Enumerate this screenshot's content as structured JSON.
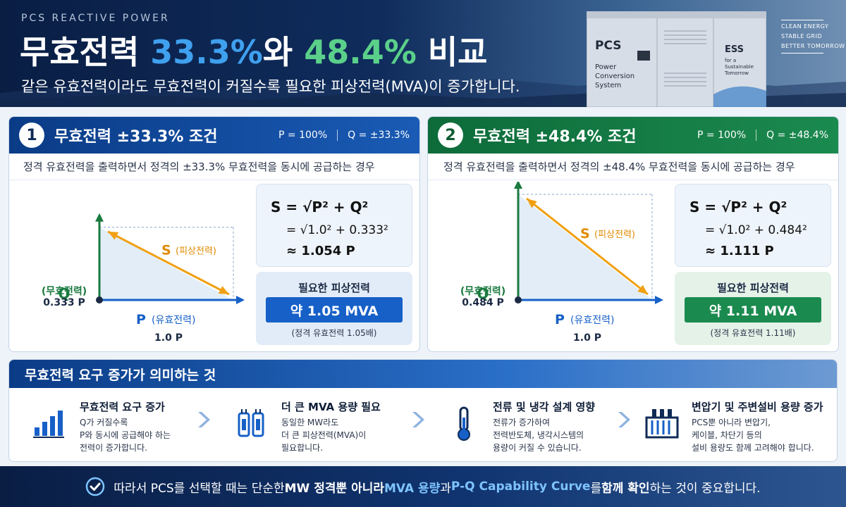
{
  "header": {
    "eyebrow": "PCS REACTIVE POWER",
    "title_part1": "무효전력 ",
    "title_pct1": "33.3%",
    "title_part2": "와 ",
    "title_pct2": "48.4%",
    "title_part3": " 비교",
    "subtitle": "같은 유효전력이라도 무효전력이 커질수록 필요한 피상전력(MVA)이 증가합니다.",
    "cabinet_label": "PCS",
    "cabinet_sub1": "Power",
    "cabinet_sub2": "Conversion",
    "cabinet_sub3": "System",
    "cabinet_ess": "ESS",
    "cabinet_ess1": "for a",
    "cabinet_ess2": "Sustainable",
    "cabinet_ess3": "Tomorrow",
    "tagline": [
      "CLEAN ENERGY",
      "STABLE GRID",
      "BETTER TOMORROW"
    ]
  },
  "panels": [
    {
      "number": "1",
      "title": "무효전력 ±33.3% 조건",
      "p_meta": "P = 100%",
      "q_meta": "Q = ±33.3%",
      "description": "정격 유효전력을 출력하면서 정격의 ±33.3% 무효전력을 동시에 공급하는 경우",
      "q_axis": "Q",
      "q_axis_sub": "(무효전력)",
      "q_value": "0.333 P",
      "s_label": "S",
      "s_label_sub": "(피상전력)",
      "p_axis": "P",
      "p_axis_sub": "(유효전력)",
      "p_value": "1.0 P",
      "formula1": "S = √P² + Q²",
      "formula2": "= √1.0² + 0.333²",
      "formula3": "≈ 1.054 P",
      "req_title": "필요한 피상전력",
      "req_value": "약 1.05 MVA",
      "req_note": "(정격 유효전력 1.05배)",
      "q_ratio": 0.333,
      "color": "#1660c7"
    },
    {
      "number": "2",
      "title": "무효전력 ±48.4% 조건",
      "p_meta": "P = 100%",
      "q_meta": "Q = ±48.4%",
      "description": "정격 유효전력을 출력하면서 정격의 ±48.4% 무효전력을 동시에 공급하는 경우",
      "q_axis": "Q",
      "q_axis_sub": "(무효전력)",
      "q_value": "0.484 P",
      "s_label": "S",
      "s_label_sub": "(피상전력)",
      "p_axis": "P",
      "p_axis_sub": "(유효전력)",
      "p_value": "1.0 P",
      "formula1": "S = √P² + Q²",
      "formula2": "= √1.0² + 0.484²",
      "formula3": "≈ 1.111 P",
      "req_title": "필요한 피상전력",
      "req_value": "약 1.11 MVA",
      "req_note": "(정격 유효전력 1.11배)",
      "q_ratio": 0.484,
      "color": "#1b8a4f"
    }
  ],
  "meaning": {
    "title": "무효전력 요구 증가가 의미하는 것",
    "items": [
      {
        "icon": "bar-chart-icon",
        "title": "무효전력 요구 증가",
        "lines": [
          "Q가 커질수록",
          "P와 동시에 공급해야 하는",
          "전력이 증가합니다."
        ]
      },
      {
        "icon": "capacitor-icon",
        "title": "더 큰 MVA 용량 필요",
        "lines": [
          "동일한 MW라도",
          "더 큰 피상전력(MVA)이",
          "필요합니다."
        ]
      },
      {
        "icon": "thermometer-icon",
        "title": "전류 및 냉각 설계 영향",
        "lines": [
          "전류가 증가하여",
          "전력반도체, 냉각시스템의",
          "용량이 커질 수 있습니다."
        ]
      },
      {
        "icon": "transformer-icon",
        "title": "변압기 및 주변설비 용량 증가",
        "lines": [
          "PCS뿐 아니라 변압기,",
          "케이블, 차단기 등의",
          "설비 용량도 함께 고려해야 합니다."
        ]
      }
    ]
  },
  "footer": {
    "part1": "따라서 PCS를 선택할 때는 단순한 ",
    "part2": "MW 정격뿐 아니라 ",
    "part3": "MVA 용량",
    "part4": "과 ",
    "part5": "P-Q Capability Curve",
    "part6": "를 ",
    "part7": "함께 확인",
    "part8": "하는 것이 중요합니다."
  }
}
